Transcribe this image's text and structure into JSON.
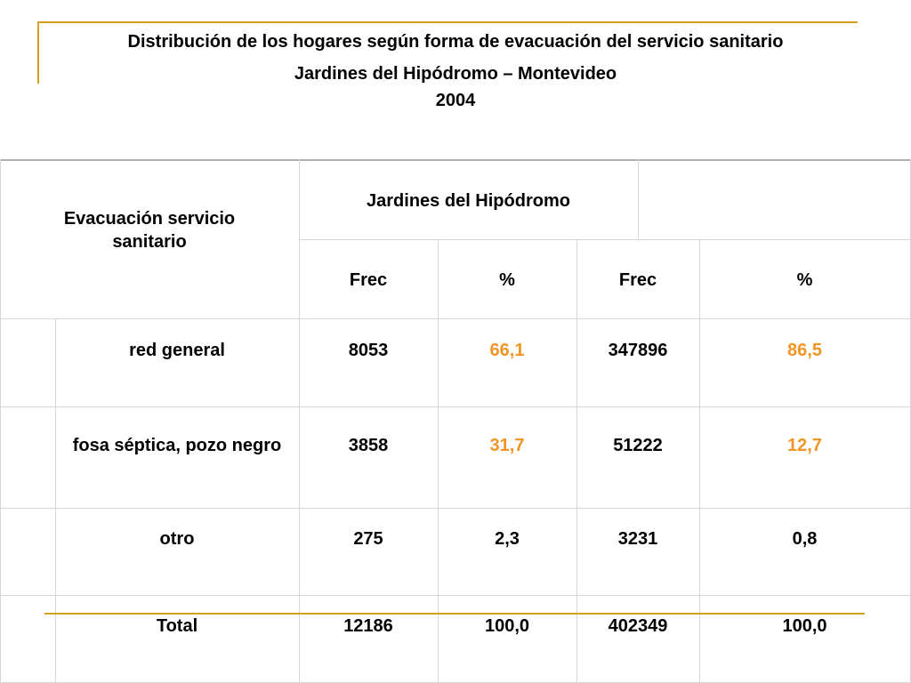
{
  "title": {
    "line1": "Distribución de los hogares según forma de evacuación del servicio sanitario",
    "line2": "Jardines del Hipódromo – Montevideo",
    "line3": "2004"
  },
  "table": {
    "row_header": "Evacuación servicio sanitario",
    "group_header": "Jardines del Hipódromo",
    "group_header_2": "",
    "columns": [
      "Frec",
      "%",
      "Frec",
      "%"
    ],
    "rows": [
      {
        "label": "red general",
        "values": [
          "8053",
          "66,1",
          "347896",
          "86,5"
        ]
      },
      {
        "label": "fosa séptica, pozo negro",
        "values": [
          "3858",
          "31,7",
          "51222",
          "12,7"
        ]
      },
      {
        "label": "otro",
        "values": [
          "275",
          "2,3",
          "3231",
          "0,8"
        ]
      },
      {
        "label": "Total",
        "values": [
          "12186",
          "100,0",
          "402349",
          "100,0"
        ]
      }
    ],
    "highlight_color": "#f29525"
  }
}
